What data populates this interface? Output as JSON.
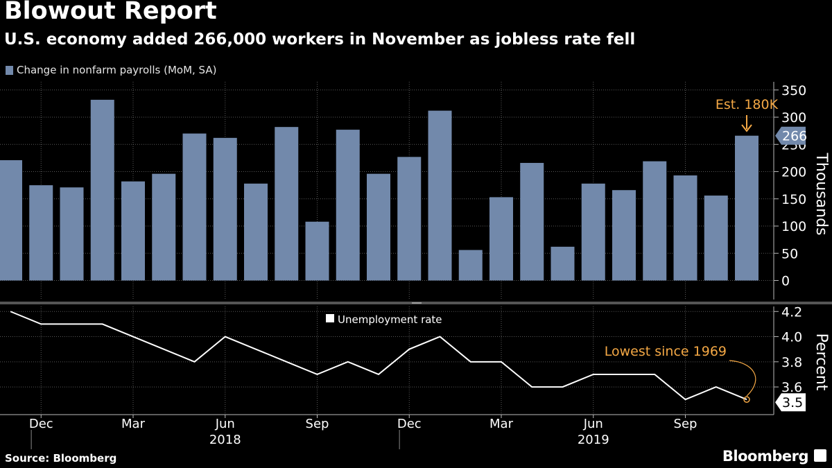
{
  "header": {
    "title": "Blowout Report",
    "subtitle": "U.S. economy added 266,000 workers in November as jobless rate fell"
  },
  "legend": {
    "payrolls": "Change in nonfarm payrolls (MoM, SA)",
    "unemployment": "Unemployment rate"
  },
  "footer": {
    "source": "Source: Bloomberg",
    "brand": "Bloomberg"
  },
  "colors": {
    "background": "#000000",
    "bar": "#7289ab",
    "line": "#ffffff",
    "annotation": "#f4a845",
    "grid": "#5a5a5a",
    "divider": "#555555"
  },
  "chart_data": [
    {
      "type": "bar",
      "series_name": "Change in nonfarm payrolls (MoM, SA)",
      "x": [
        "2017-11",
        "2017-12",
        "2018-01",
        "2018-02",
        "2018-03",
        "2018-04",
        "2018-05",
        "2018-06",
        "2018-07",
        "2018-08",
        "2018-09",
        "2018-10",
        "2018-11",
        "2018-12",
        "2019-01",
        "2019-02",
        "2019-03",
        "2019-04",
        "2019-05",
        "2019-06",
        "2019-07",
        "2019-08",
        "2019-09",
        "2019-10",
        "2019-11"
      ],
      "values": [
        221,
        175,
        171,
        332,
        182,
        196,
        270,
        262,
        178,
        282,
        108,
        277,
        196,
        227,
        312,
        56,
        153,
        216,
        62,
        178,
        166,
        219,
        193,
        156,
        266
      ],
      "ylabel": "Thousands",
      "ylim": [
        -35,
        365
      ],
      "yticks": [
        0,
        50,
        100,
        150,
        200,
        250,
        300,
        350
      ],
      "ytick_labels": [
        "0",
        "50",
        "100",
        "150",
        "200",
        "250",
        "300",
        "350"
      ],
      "last_value_label": "266",
      "annotation": {
        "text": "Est. 180K",
        "category": "2019-11"
      },
      "grid": true
    },
    {
      "type": "line",
      "series_name": "Unemployment rate",
      "x": [
        "2017-11",
        "2017-12",
        "2018-01",
        "2018-02",
        "2018-03",
        "2018-04",
        "2018-05",
        "2018-06",
        "2018-07",
        "2018-08",
        "2018-09",
        "2018-10",
        "2018-11",
        "2018-12",
        "2019-01",
        "2019-02",
        "2019-03",
        "2019-04",
        "2019-05",
        "2019-06",
        "2019-07",
        "2019-08",
        "2019-09",
        "2019-10",
        "2019-11"
      ],
      "values": [
        4.2,
        4.1,
        4.1,
        4.1,
        4.0,
        3.9,
        3.8,
        4.0,
        3.9,
        3.8,
        3.7,
        3.8,
        3.7,
        3.9,
        4.0,
        3.8,
        3.8,
        3.6,
        3.6,
        3.7,
        3.7,
        3.7,
        3.5,
        3.6,
        3.5
      ],
      "ylabel": "Percent",
      "ylim": [
        3.38,
        4.24
      ],
      "yticks": [
        3.6,
        3.8,
        4.0,
        4.2
      ],
      "ytick_labels": [
        "3.6",
        "3.8",
        "4.0",
        "4.2"
      ],
      "last_value_label": "3.5",
      "annotation": {
        "text": "Lowest since 1969",
        "category": "2019-11"
      },
      "grid": true
    }
  ],
  "x_axis": {
    "month_ticks": [
      {
        "label": "Dec",
        "category": "2017-12"
      },
      {
        "label": "Mar",
        "category": "2018-03"
      },
      {
        "label": "Jun",
        "category": "2018-06"
      },
      {
        "label": "Sep",
        "category": "2018-09"
      },
      {
        "label": "Dec",
        "category": "2018-12"
      },
      {
        "label": "Mar",
        "category": "2019-03"
      },
      {
        "label": "Jun",
        "category": "2019-06"
      },
      {
        "label": "Sep",
        "category": "2019-09"
      }
    ],
    "year_labels": [
      {
        "label": "2018",
        "category": "2018-06"
      },
      {
        "label": "2019",
        "category": "2019-06"
      }
    ]
  }
}
